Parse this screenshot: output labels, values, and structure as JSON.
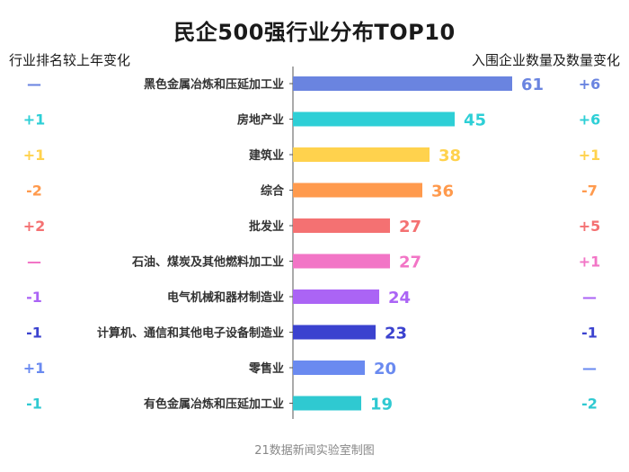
{
  "chart_data": {
    "type": "bar",
    "title": "民企500强行业分布TOP10",
    "left_header": "行业排名较上年变化",
    "right_header": "入围企业数量及数量变化",
    "xlim": [
      0,
      61
    ],
    "categories": [
      "黑色金属冶炼和压延加工业",
      "房地产业",
      "建筑业",
      "综合",
      "批发业",
      "石油、煤炭及其他燃料加工业",
      "电气机械和器材制造业",
      "计算机、通信和其他电子设备制造业",
      "零售业",
      "有色金属冶炼和压延加工业"
    ],
    "values": [
      61,
      45,
      38,
      36,
      27,
      27,
      24,
      23,
      20,
      19
    ],
    "rank_change": [
      "—",
      "+1",
      "+1",
      "-2",
      "+2",
      "—",
      "-1",
      "-1",
      "+1",
      "-1"
    ],
    "count_change": [
      "+6",
      "+6",
      "+1",
      "-7",
      "+5",
      "+1",
      "—",
      "-1",
      "—",
      "-2"
    ],
    "colors": [
      "#6a84e0",
      "#2dcfd6",
      "#ffd24d",
      "#ff9a4d",
      "#f47172",
      "#f275c6",
      "#ab64f5",
      "#3b42cf",
      "#6a8af0",
      "#2fc9d1"
    ]
  },
  "source": "21数据新闻实验室制图"
}
